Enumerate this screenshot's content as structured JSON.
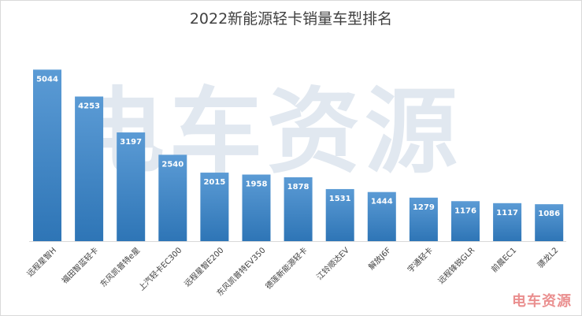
{
  "chart_data": {
    "type": "bar",
    "title": "2022新能源轻卡销量车型排名",
    "categories": [
      "远程星智H",
      "福田智蓝轻卡",
      "东风凯普特e星",
      "上汽轻卡EC300",
      "远程星智E200",
      "东风凯普特EV350",
      "德莲新能源轻卡",
      "江铃顺达EV",
      "解放J6F",
      "宇通轻卡",
      "远程锋锐GLR",
      "前晨EC1",
      "骠龙L2"
    ],
    "values": [
      5044,
      4253,
      3197,
      2540,
      2015,
      1958,
      1878,
      1531,
      1444,
      1279,
      1176,
      1117,
      1086
    ],
    "xlabel": "",
    "ylabel": "",
    "ylim": [
      0,
      5400
    ],
    "grid": false,
    "legend": "none",
    "bar_color_top": "#5b9bd5",
    "bar_color_bottom": "#2e75b6"
  },
  "watermark": "电车资源",
  "logo": "电车资源"
}
